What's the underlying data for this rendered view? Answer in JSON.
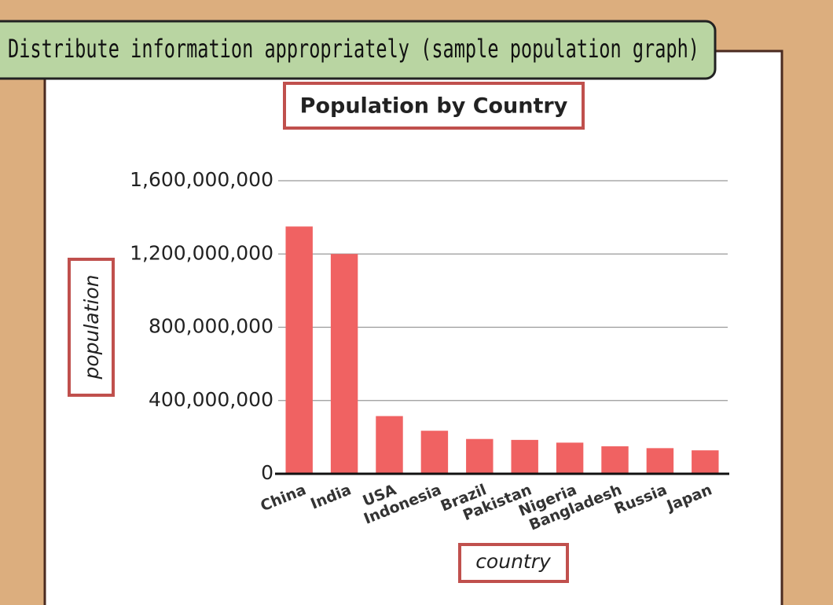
{
  "banner": "Distribute information appropriately (sample population graph)",
  "chart_data": {
    "type": "bar",
    "title": "Population by Country",
    "ylabel": "population",
    "xlabel": "country",
    "categories": [
      "China",
      "India",
      "USA",
      "Indonesia",
      "Brazil",
      "Pakistan",
      "Nigeria",
      "Bangladesh",
      "Russia",
      "Japan"
    ],
    "values": [
      1350000000,
      1200000000,
      315000000,
      235000000,
      190000000,
      185000000,
      170000000,
      150000000,
      140000000,
      128000000
    ],
    "color": "#f06262",
    "ylim": [
      0,
      1600000000
    ],
    "yticks": [
      0,
      {
        "value": 400000000,
        "label": "400,000,000"
      },
      {
        "value": 800000000,
        "label": "800,000,000"
      },
      {
        "value": 1200000000,
        "label": "1,200,000,000"
      },
      {
        "value": 1600000000,
        "label": "1,600,000,000"
      }
    ],
    "grid": true
  }
}
